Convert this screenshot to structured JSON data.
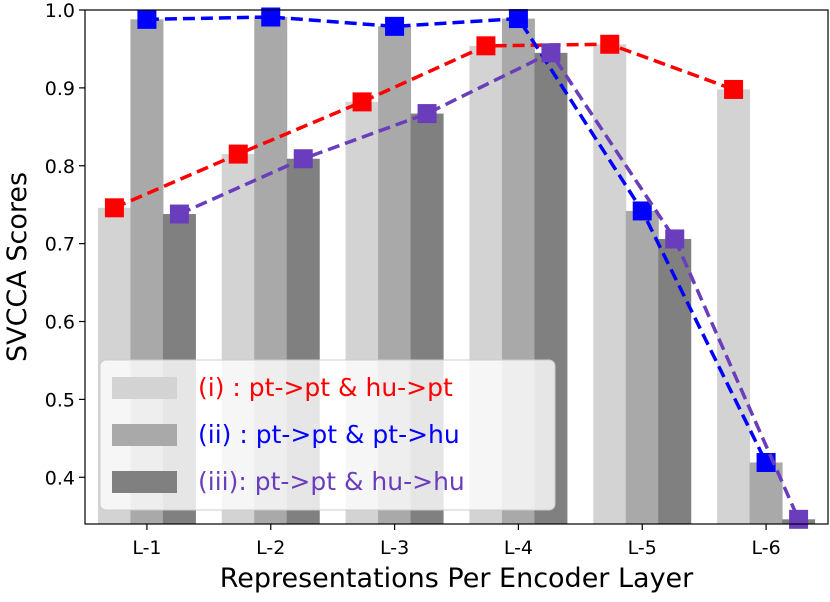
{
  "chart_data": {
    "type": "bar",
    "categories": [
      "L-1",
      "L-2",
      "L-3",
      "L-4",
      "L-5",
      "L-6"
    ],
    "xlabel": "Representations Per Encoder Layer",
    "ylabel": "SVCCA Scores",
    "ylim": [
      0.34,
      1.0
    ],
    "yticks": [
      "1.0",
      "0.9",
      "0.8",
      "0.7",
      "0.6",
      "0.5",
      "0.4"
    ],
    "grid": false,
    "legend_position": "lower-left",
    "series": [
      {
        "name": "(i)  : pt->pt & hu->pt",
        "bar_color": "#d3d3d3",
        "line_color": "#ff0000",
        "values": [
          0.746,
          0.815,
          0.882,
          0.954,
          0.956,
          0.898
        ]
      },
      {
        "name": "(ii) : pt->pt & pt->hu",
        "bar_color": "#a9a9a9",
        "line_color": "#0000ff",
        "values": [
          0.988,
          0.991,
          0.979,
          0.989,
          0.742,
          0.419
        ]
      },
      {
        "name": "(iii): pt->pt & hu->hu",
        "bar_color": "#808080",
        "line_color": "#6a3dbd",
        "values": [
          0.738,
          0.809,
          0.867,
          0.945,
          0.706,
          0.346
        ]
      }
    ]
  }
}
